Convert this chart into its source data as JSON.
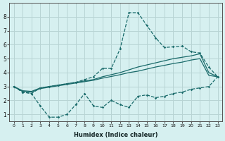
{
  "xlabel": "Humidex (Indice chaleur)",
  "bg_color": "#d6f0f0",
  "grid_color": "#b8d4d4",
  "line_color": "#1a6b6b",
  "x_vals": [
    0,
    1,
    2,
    3,
    4,
    5,
    6,
    7,
    8,
    9,
    10,
    11,
    12,
    13,
    14,
    15,
    16,
    17,
    18,
    19,
    20,
    21,
    22,
    23
  ],
  "line1_y": [
    3.0,
    2.6,
    2.5,
    1.6,
    0.8,
    0.8,
    1.0,
    1.7,
    2.5,
    1.6,
    1.5,
    2.0,
    1.7,
    1.5,
    2.3,
    2.4,
    2.2,
    2.3,
    2.5,
    2.6,
    2.8,
    2.9,
    3.0,
    3.7
  ],
  "line2_y": [
    3.0,
    2.6,
    2.5,
    2.9,
    3.0,
    3.1,
    3.2,
    3.3,
    3.5,
    3.7,
    4.3,
    4.3,
    5.7,
    8.3,
    8.3,
    7.4,
    6.5,
    5.8,
    5.85,
    5.9,
    5.5,
    5.4,
    4.4,
    3.7
  ],
  "line3_y": [
    3.0,
    2.7,
    2.65,
    2.9,
    3.0,
    3.1,
    3.2,
    3.3,
    3.4,
    3.5,
    3.7,
    3.85,
    4.0,
    4.2,
    4.4,
    4.55,
    4.7,
    4.85,
    5.0,
    5.1,
    5.2,
    5.35,
    4.0,
    3.7
  ],
  "line4_y": [
    3.0,
    2.65,
    2.6,
    2.85,
    2.95,
    3.05,
    3.15,
    3.25,
    3.35,
    3.45,
    3.6,
    3.72,
    3.85,
    4.0,
    4.1,
    4.25,
    4.4,
    4.52,
    4.65,
    4.75,
    4.9,
    5.0,
    3.8,
    3.7
  ],
  "ylim": [
    0.5,
    9.0
  ],
  "yticks": [
    1,
    2,
    3,
    4,
    5,
    6,
    7,
    8
  ],
  "xlim": [
    -0.5,
    23.5
  ],
  "xticks": [
    0,
    1,
    2,
    3,
    4,
    5,
    6,
    7,
    8,
    9,
    10,
    11,
    12,
    13,
    14,
    15,
    16,
    17,
    18,
    19,
    20,
    21,
    22,
    23
  ]
}
